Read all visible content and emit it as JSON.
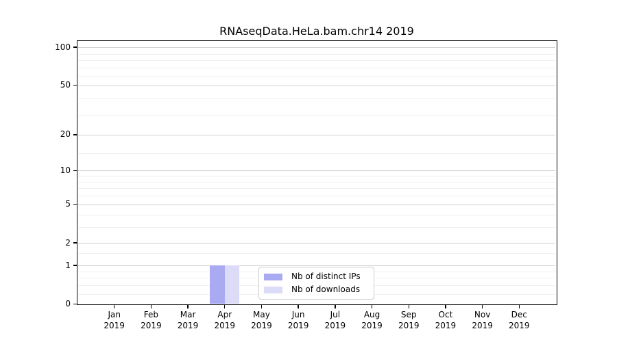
{
  "chart_data": {
    "type": "bar",
    "title": "RNAseqData.HeLa.bam.chr14 2019",
    "categories": [
      "Jan",
      "Feb",
      "Mar",
      "Apr",
      "May",
      "Jun",
      "Jul",
      "Aug",
      "Sep",
      "Oct",
      "Nov",
      "Dec"
    ],
    "x_year_label": "2019",
    "series": [
      {
        "name": "Nb of distinct IPs",
        "color": "#aaaaf2",
        "values": [
          0,
          0,
          0,
          1,
          0,
          0,
          0,
          0,
          0,
          0,
          0,
          0
        ]
      },
      {
        "name": "Nb of downloads",
        "color": "#dcdcf8",
        "values": [
          0,
          0,
          0,
          1,
          0,
          0,
          0,
          0,
          0,
          0,
          0,
          0
        ]
      }
    ],
    "y_axis": {
      "scale": "log1p",
      "ticks": [
        0,
        1,
        2,
        5,
        10,
        20,
        50,
        100
      ],
      "minor_ticks": [
        0.2,
        0.4,
        0.6,
        0.8,
        1.5,
        3,
        4,
        6,
        7,
        8,
        9,
        14,
        29,
        39,
        59,
        69,
        79,
        89
      ],
      "max": 112
    },
    "xlabel": "",
    "ylabel": "",
    "legend": {
      "position": "lower-center"
    },
    "colors": {
      "grid_major": "#d0d0d0",
      "grid_minor": "#f0f0f0",
      "axis": "#000000",
      "background": "#ffffff"
    }
  }
}
